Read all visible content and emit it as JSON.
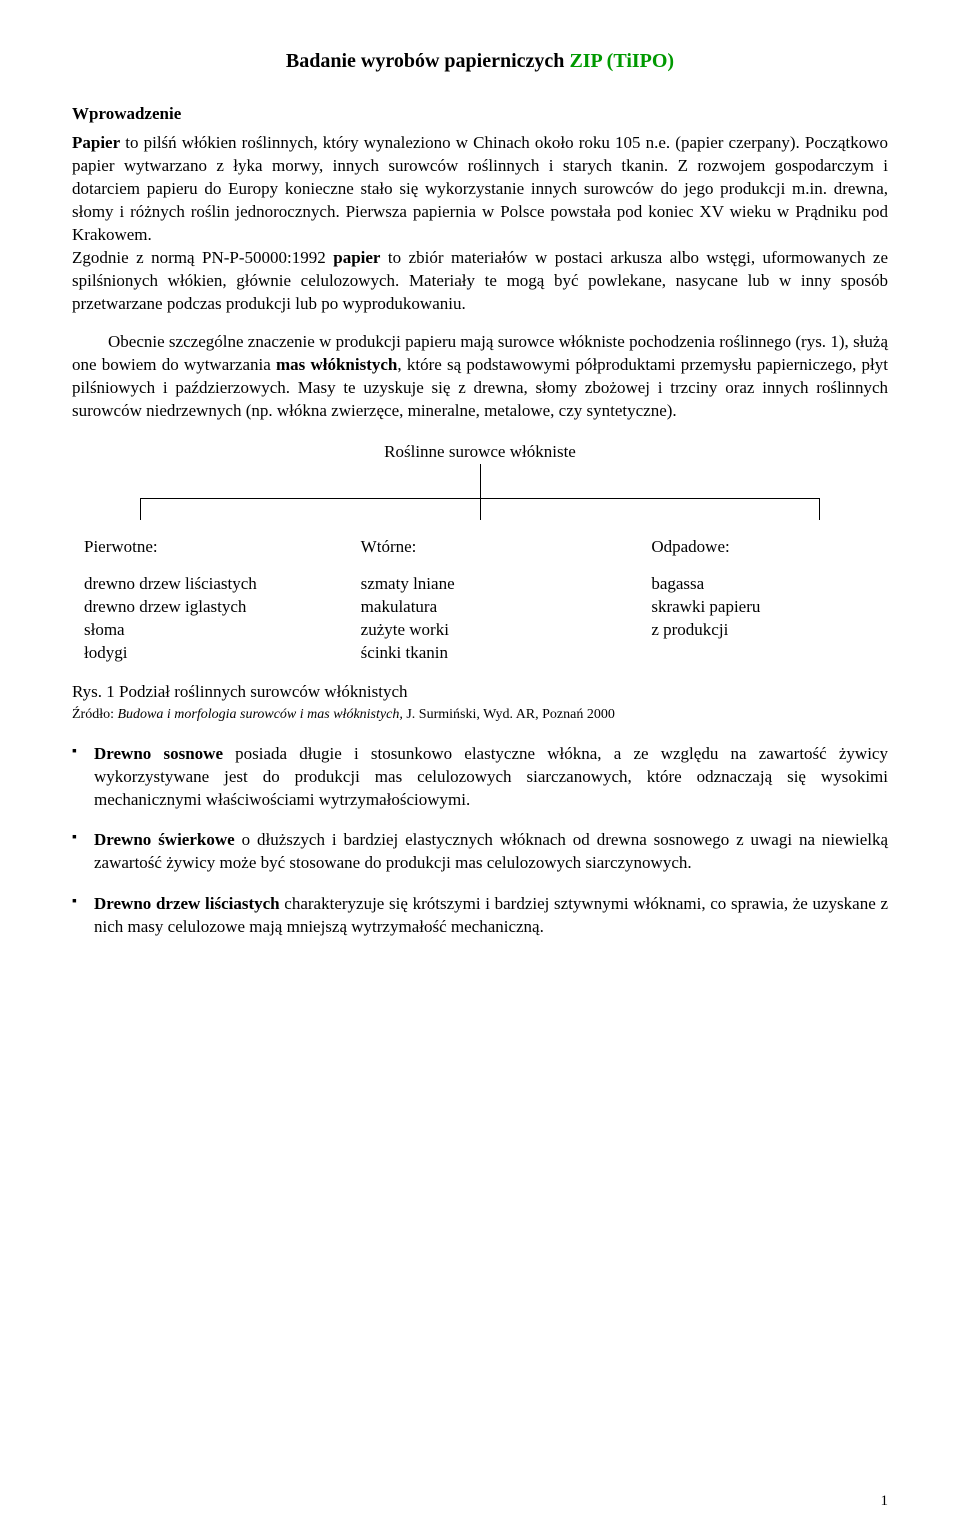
{
  "title": {
    "plain": "Badanie wyrobów papierniczych ",
    "green": "ZIP (TiIPO)"
  },
  "intro_head": "Wprowadzenie",
  "p1_prefix": "Papier",
  "p1_rest": " to pilśń włókien roślinnych, który wynaleziono w Chinach około roku 105 n.e. (papier czerpany). Początkowo papier wytwarzano z łyka morwy, innych surowców roślinnych i starych tkanin. Z rozwojem gospodarczym i dotarciem papieru do Europy konieczne stało się wykorzystanie innych surowców do jego produkcji m.in. drewna, słomy i różnych roślin jednorocznych. Pierwsza papiernia w Polsce powstała pod koniec XV wieku w Prądniku pod Krakowem.",
  "p1b_prefix": "Zgodnie z normą PN-P-50000:1992 ",
  "p1b_bold": "papier",
  "p1b_rest": " to zbiór materiałów w postaci arkusza albo wstęgi, uformowanych ze spilśnionych włókien, głównie celulozowych. Materiały te mogą być powlekane, nasycane lub w inny sposób przetwarzane podczas produkcji lub po wyprodukowaniu.",
  "p2_a": "Obecnie szczególne znaczenie w produkcji papieru mają surowce włókniste pochodzenia roślinnego (rys. 1), służą one bowiem do wytwarzania ",
  "p2_bold": "mas włóknistych",
  "p2_b": ", które są podstawowymi półproduktami przemysłu papierniczego, płyt pilśniowych i paździerzowych. Masy te uzyskuje się z drewna, słomy zbożowej i trzciny oraz innych roślinnych surowców niedrzewnych (np. włókna zwierzęce, mineralne, metalowe, czy syntetyczne).",
  "diagram": {
    "title": "Roślinne surowce włókniste",
    "cols": [
      {
        "head": "Pierwotne:",
        "items": [
          "drewno drzew liściastych",
          "drewno drzew iglastych",
          "słoma",
          "łodygi"
        ]
      },
      {
        "head": "Wtórne:",
        "items": [
          "szmaty lniane",
          "makulatura",
          "zużyte worki",
          "ścinki tkanin"
        ]
      },
      {
        "head": "Odpadowe:",
        "items": [
          "bagassa",
          "skrawki papieru",
          "z produkcji"
        ]
      }
    ]
  },
  "fig_caption": "Rys. 1 Podział roślinnych surowców włóknistych",
  "fig_source_lead": "Źródło: ",
  "fig_source_ital": "Budowa i morfologia surowców i mas włóknistych, ",
  "fig_source_tail": "J. Surmiński, Wyd. AR, Poznań 2000",
  "bullets": [
    {
      "bold": "Drewno sosnowe",
      "rest": " posiada długie i stosunkowo elastyczne włókna, a ze względu na zawartość żywicy wykorzystywane jest do produkcji mas celulozowych siarczanowych, które odznaczają się wysokimi mechanicznymi właściwościami wytrzymałościowymi."
    },
    {
      "bold": "Drewno świerkowe",
      "rest": " o dłuższych i bardziej elastycznych włóknach od drewna sosnowego z uwagi na niewielką zawartość żywicy może być stosowane do produkcji mas celulozowych siarczynowych."
    },
    {
      "bold": "Drewno drzew liściastych",
      "rest": "  charakteryzuje się krótszymi i bardziej sztywnymi włóknami, co sprawia, że uzyskane z nich masy celulozowe mają mniejszą wytrzymałość mechaniczną."
    }
  ],
  "page_number": "1"
}
